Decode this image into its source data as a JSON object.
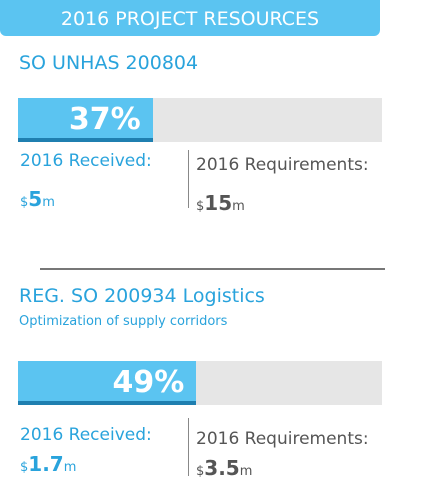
{
  "header": {
    "title": "2016 PROJECT RESOURCES"
  },
  "projects": [
    {
      "name": "SO UNHAS 200804",
      "percent": {
        "value": 37,
        "label": "37%"
      },
      "received": {
        "label": "2016 Received:",
        "currency": "$",
        "amount": "5",
        "unit": "m"
      },
      "requirements": {
        "label": "2016 Requirements:",
        "currency": "$",
        "amount": "15",
        "unit": "m"
      }
    },
    {
      "name": "REG. SO 200934 Logistics",
      "subtitle": "Optimization of supply corridors",
      "percent": {
        "value": 49,
        "label": "49%"
      },
      "received": {
        "label": "2016 Received:",
        "currency": "$",
        "amount": "1.7",
        "unit": "m"
      },
      "requirements": {
        "label": "2016 Requirements:",
        "currency": "$",
        "amount": "3.5",
        "unit": "m"
      }
    }
  ]
}
